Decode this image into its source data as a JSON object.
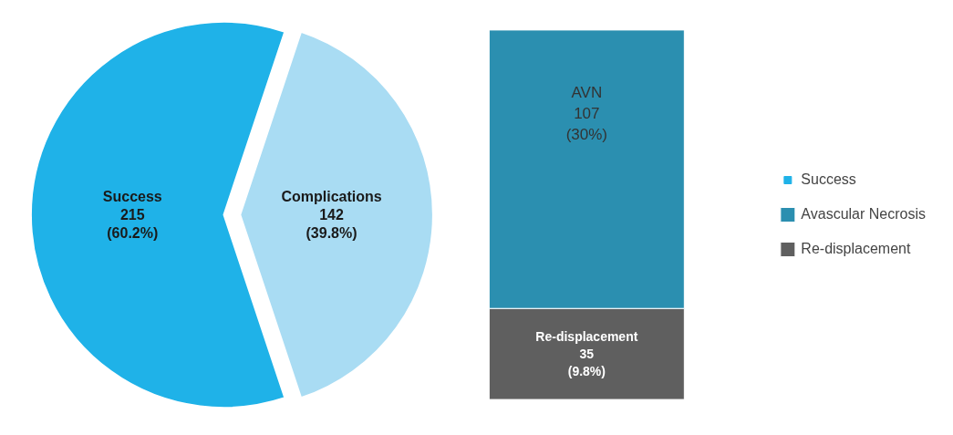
{
  "chart_data": [
    {
      "type": "pie",
      "categories": [
        "Success",
        "Complications"
      ],
      "values": [
        215,
        142
      ],
      "colors": [
        "#1fb2e8",
        "#a9dcf3"
      ],
      "value_labels": [
        "215\n(60.2%)",
        "142\n(39.8%)"
      ],
      "legend": "right"
    },
    {
      "type": "bar",
      "stacked": true,
      "categories": [
        null
      ],
      "series": [
        {
          "name": "Re-displacement",
          "color": "#5f5f5f",
          "values": [
            35
          ],
          "value_labels": [
            "Re-displacement\n35\n(9.8%)"
          ]
        },
        {
          "name": "Avascular Necrosis",
          "color": "#2b8fb0",
          "values": [
            107
          ],
          "value_labels": [
            "AVN\n107\n(30%)"
          ]
        }
      ],
      "legend": "right"
    }
  ]
}
